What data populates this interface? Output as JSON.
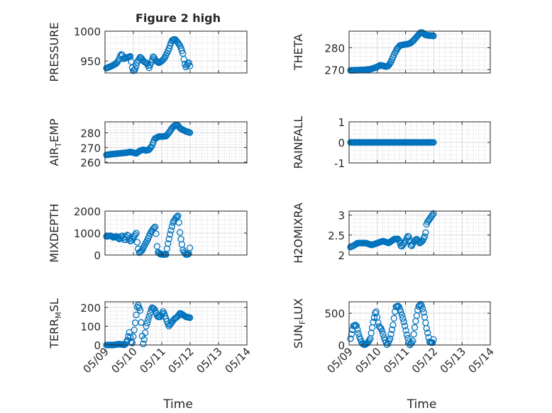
{
  "figure": {
    "title": "Figure 2 high",
    "marker_color": "#0072bd"
  },
  "chart_data": [
    {
      "type": "scatter",
      "ylabel": "PRESSURE",
      "xlabel": "",
      "x_range": [
        "05/09",
        "05/14"
      ],
      "ylim": [
        930,
        1000
      ],
      "yticks": [
        950,
        1000
      ],
      "xticks": [
        "05/09",
        "05/10",
        "05/11",
        "05/12",
        "05/13",
        "05/14"
      ],
      "grid": true,
      "anchors": [
        [
          0.05,
          938
        ],
        [
          0.25,
          942
        ],
        [
          0.4,
          946
        ],
        [
          0.5,
          953
        ],
        [
          0.55,
          960
        ],
        [
          0.6,
          962
        ],
        [
          0.65,
          953
        ],
        [
          0.72,
          955
        ],
        [
          0.85,
          957
        ],
        [
          0.9,
          958
        ],
        [
          0.95,
          940
        ],
        [
          1.0,
          933
        ],
        [
          1.05,
          935
        ],
        [
          1.1,
          942
        ],
        [
          1.15,
          950
        ],
        [
          1.25,
          957
        ],
        [
          1.35,
          950
        ],
        [
          1.5,
          945
        ],
        [
          1.55,
          938
        ],
        [
          1.6,
          944
        ],
        [
          1.7,
          958
        ],
        [
          1.8,
          950
        ],
        [
          1.9,
          947
        ],
        [
          2.0,
          950
        ],
        [
          2.1,
          955
        ],
        [
          2.25,
          970
        ],
        [
          2.35,
          984
        ],
        [
          2.45,
          987
        ],
        [
          2.55,
          982
        ],
        [
          2.65,
          975
        ],
        [
          2.75,
          962
        ],
        [
          2.8,
          947
        ],
        [
          2.85,
          940
        ],
        [
          2.95,
          948
        ],
        [
          3.0,
          940
        ]
      ]
    },
    {
      "type": "scatter",
      "ylabel": "THETA",
      "xlabel": "",
      "x_range": [
        "05/09",
        "05/14"
      ],
      "ylim": [
        268.5,
        287.5
      ],
      "yticks": [
        270,
        280
      ],
      "xticks": [
        "05/09",
        "05/10",
        "05/11",
        "05/12",
        "05/13",
        "05/14"
      ],
      "grid": true,
      "anchors": [
        [
          0.05,
          269.7
        ],
        [
          0.5,
          269.9
        ],
        [
          0.75,
          270.2
        ],
        [
          0.95,
          271
        ],
        [
          1.1,
          272
        ],
        [
          1.2,
          271.8
        ],
        [
          1.3,
          271.4
        ],
        [
          1.4,
          271.8
        ],
        [
          1.5,
          274
        ],
        [
          1.6,
          277
        ],
        [
          1.7,
          279.5
        ],
        [
          1.8,
          281
        ],
        [
          1.95,
          281.4
        ],
        [
          2.1,
          281.7
        ],
        [
          2.2,
          282.3
        ],
        [
          2.3,
          283.5
        ],
        [
          2.4,
          285
        ],
        [
          2.5,
          286.5
        ],
        [
          2.55,
          287
        ],
        [
          2.6,
          286.8
        ],
        [
          2.7,
          285.8
        ],
        [
          2.8,
          285.6
        ],
        [
          2.9,
          285.5
        ],
        [
          3.0,
          285.3
        ]
      ]
    },
    {
      "type": "scatter",
      "ylabel": "AIR_TEMP",
      "xlabel": "",
      "x_range": [
        "05/09",
        "05/14"
      ],
      "ylim": [
        259.5,
        287.5
      ],
      "yticks": [
        260,
        270,
        280
      ],
      "xticks": [
        "05/09",
        "05/10",
        "05/11",
        "05/12",
        "05/13",
        "05/14"
      ],
      "grid": true,
      "anchors": [
        [
          0.05,
          265
        ],
        [
          0.25,
          265.5
        ],
        [
          0.5,
          266
        ],
        [
          0.75,
          266.5
        ],
        [
          0.9,
          267
        ],
        [
          1.0,
          266.5
        ],
        [
          1.1,
          266
        ],
        [
          1.25,
          268
        ],
        [
          1.35,
          268.5
        ],
        [
          1.45,
          268
        ],
        [
          1.55,
          268.5
        ],
        [
          1.65,
          271
        ],
        [
          1.75,
          276
        ],
        [
          1.9,
          277.5
        ],
        [
          2.05,
          277.5
        ],
        [
          2.15,
          277.8
        ],
        [
          2.25,
          280
        ],
        [
          2.35,
          283
        ],
        [
          2.45,
          285
        ],
        [
          2.55,
          285.5
        ],
        [
          2.65,
          283
        ],
        [
          2.75,
          282
        ],
        [
          2.85,
          281
        ],
        [
          2.95,
          280.5
        ],
        [
          3.0,
          280
        ]
      ]
    },
    {
      "type": "scatter",
      "ylabel": "RAINFALL",
      "xlabel": "",
      "x_range": [
        "05/09",
        "05/14"
      ],
      "ylim": [
        -1,
        1
      ],
      "yticks": [
        -1,
        0,
        1
      ],
      "xticks": [
        "05/09",
        "05/10",
        "05/11",
        "05/12",
        "05/13",
        "05/14"
      ],
      "grid": true,
      "anchors": [
        [
          0.05,
          0
        ],
        [
          3.0,
          0
        ]
      ]
    },
    {
      "type": "scatter",
      "ylabel": "MIXDEPTH",
      "xlabel": "",
      "x_range": [
        "05/09",
        "05/14"
      ],
      "ylim": [
        0,
        2000
      ],
      "yticks": [
        0,
        1000,
        2000
      ],
      "xticks": [
        "05/09",
        "05/10",
        "05/11",
        "05/12",
        "05/13",
        "05/14"
      ],
      "grid": true,
      "anchors": [
        [
          0.05,
          850
        ],
        [
          0.2,
          880
        ],
        [
          0.3,
          800
        ],
        [
          0.4,
          850
        ],
        [
          0.5,
          720
        ],
        [
          0.6,
          900
        ],
        [
          0.7,
          650
        ],
        [
          0.8,
          950
        ],
        [
          0.9,
          600
        ],
        [
          1.0,
          800
        ],
        [
          1.1,
          1000
        ],
        [
          1.15,
          400
        ],
        [
          1.2,
          100
        ],
        [
          1.3,
          200
        ],
        [
          1.4,
          450
        ],
        [
          1.5,
          700
        ],
        [
          1.6,
          1000
        ],
        [
          1.7,
          1200
        ],
        [
          1.78,
          1300
        ],
        [
          1.85,
          150
        ],
        [
          1.95,
          40
        ],
        [
          2.05,
          20
        ],
        [
          2.15,
          30
        ],
        [
          2.2,
          400
        ],
        [
          2.3,
          1000
        ],
        [
          2.4,
          1500
        ],
        [
          2.5,
          1700
        ],
        [
          2.58,
          1800
        ],
        [
          2.65,
          900
        ],
        [
          2.75,
          200
        ],
        [
          2.85,
          20
        ],
        [
          2.95,
          30
        ],
        [
          3.0,
          400
        ]
      ]
    },
    {
      "type": "scatter",
      "ylabel": "H2OMIXRA",
      "xlabel": "",
      "x_range": [
        "05/09",
        "05/14"
      ],
      "ylim": [
        2,
        3.1
      ],
      "yticks": [
        2,
        2.5,
        3
      ],
      "xticks": [
        "05/09",
        "05/10",
        "05/11",
        "05/12",
        "05/13",
        "05/14"
      ],
      "grid": true,
      "anchors": [
        [
          0.05,
          2.2
        ],
        [
          0.2,
          2.25
        ],
        [
          0.3,
          2.3
        ],
        [
          0.6,
          2.3
        ],
        [
          0.8,
          2.25
        ],
        [
          1.0,
          2.3
        ],
        [
          1.2,
          2.35
        ],
        [
          1.4,
          2.3
        ],
        [
          1.6,
          2.4
        ],
        [
          1.75,
          2.4
        ],
        [
          1.85,
          2.2
        ],
        [
          2.0,
          2.35
        ],
        [
          2.1,
          2.5
        ],
        [
          2.2,
          2.2
        ],
        [
          2.3,
          2.35
        ],
        [
          2.4,
          2.4
        ],
        [
          2.5,
          2.3
        ],
        [
          2.6,
          2.35
        ],
        [
          2.7,
          2.5
        ],
        [
          2.75,
          2.8
        ],
        [
          2.85,
          2.9
        ],
        [
          2.95,
          3.0
        ],
        [
          3.0,
          3.05
        ]
      ]
    },
    {
      "type": "scatter",
      "ylabel": "TERR_MSL",
      "xlabel": "Time",
      "x_range": [
        "05/09",
        "05/14"
      ],
      "ylim": [
        0,
        230
      ],
      "yticks": [
        0,
        100,
        200
      ],
      "xticks": [
        "05/09",
        "05/10",
        "05/11",
        "05/12",
        "05/13",
        "05/14"
      ],
      "grid": true,
      "anchors": [
        [
          0.05,
          0
        ],
        [
          0.3,
          0
        ],
        [
          0.5,
          5
        ],
        [
          0.7,
          0
        ],
        [
          0.8,
          30
        ],
        [
          0.85,
          70
        ],
        [
          0.95,
          0
        ],
        [
          1.05,
          100
        ],
        [
          1.15,
          220
        ],
        [
          1.25,
          180
        ],
        [
          1.3,
          60
        ],
        [
          1.35,
          0
        ],
        [
          1.45,
          100
        ],
        [
          1.55,
          150
        ],
        [
          1.65,
          200
        ],
        [
          1.75,
          190
        ],
        [
          1.85,
          150
        ],
        [
          1.95,
          150
        ],
        [
          2.05,
          180
        ],
        [
          2.15,
          140
        ],
        [
          2.25,
          100
        ],
        [
          2.35,
          120
        ],
        [
          2.45,
          140
        ],
        [
          2.55,
          150
        ],
        [
          2.65,
          170
        ],
        [
          2.75,
          160
        ],
        [
          2.85,
          150
        ],
        [
          3.0,
          145
        ]
      ]
    },
    {
      "type": "scatter",
      "ylabel": "SUN_FLUX",
      "xlabel": "Time",
      "x_range": [
        "05/09",
        "05/14"
      ],
      "ylim": [
        0,
        680
      ],
      "yticks": [
        0,
        500
      ],
      "xticks": [
        "05/09",
        "05/10",
        "05/11",
        "05/12",
        "05/13",
        "05/14"
      ],
      "grid": true,
      "anchors": [
        [
          0.05,
          100
        ],
        [
          0.15,
          300
        ],
        [
          0.25,
          320
        ],
        [
          0.35,
          150
        ],
        [
          0.45,
          30
        ],
        [
          0.55,
          0
        ],
        [
          0.65,
          30
        ],
        [
          0.75,
          100
        ],
        [
          0.85,
          350
        ],
        [
          0.95,
          550
        ],
        [
          1.05,
          300
        ],
        [
          1.15,
          250
        ],
        [
          1.25,
          100
        ],
        [
          1.35,
          0
        ],
        [
          1.45,
          100
        ],
        [
          1.55,
          300
        ],
        [
          1.65,
          600
        ],
        [
          1.75,
          620
        ],
        [
          1.85,
          500
        ],
        [
          1.95,
          350
        ],
        [
          2.05,
          150
        ],
        [
          2.15,
          0
        ],
        [
          2.25,
          50
        ],
        [
          2.35,
          350
        ],
        [
          2.45,
          600
        ],
        [
          2.55,
          650
        ],
        [
          2.65,
          500
        ],
        [
          2.75,
          250
        ],
        [
          2.85,
          50
        ],
        [
          2.95,
          30
        ],
        [
          3.0,
          100
        ]
      ]
    }
  ]
}
